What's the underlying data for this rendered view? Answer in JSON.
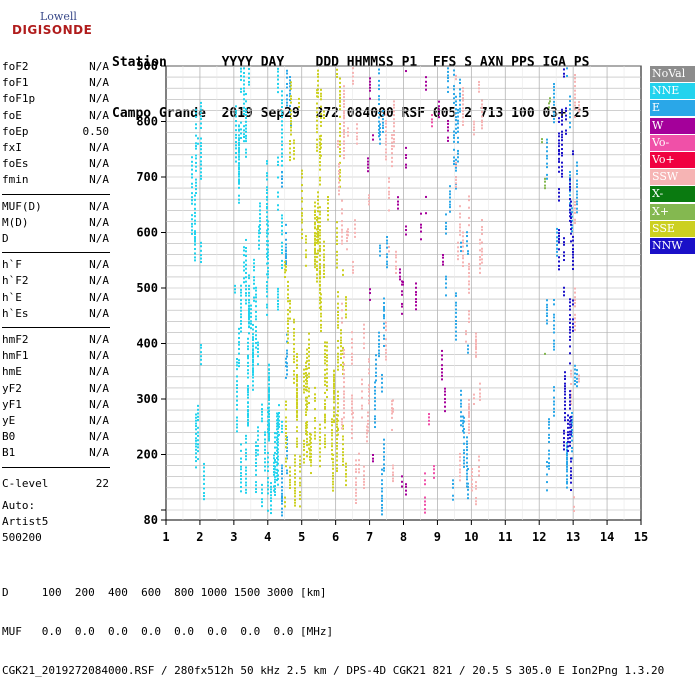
{
  "logo": {
    "line1": "Lowell",
    "line2": "DIGISONDE"
  },
  "header": {
    "line1": "Station       YYYY DAY    DDD HHMMSS P1  FFS S AXN PPS IGA PS",
    "line2": "Campo Grande  2019 Sep29  272 084000 RSF 005 2 713 100 03+ 25"
  },
  "params": {
    "group1": [
      {
        "name": "foF2",
        "value": "N/A"
      },
      {
        "name": "foF1",
        "value": "N/A"
      },
      {
        "name": "foF1p",
        "value": "N/A"
      },
      {
        "name": "foE",
        "value": "N/A"
      },
      {
        "name": "foEp",
        "value": "0.50"
      },
      {
        "name": "fxI",
        "value": "N/A"
      },
      {
        "name": "foEs",
        "value": "N/A"
      },
      {
        "name": "fmin",
        "value": "N/A"
      }
    ],
    "group2": [
      {
        "name": "MUF(D)",
        "value": "N/A"
      },
      {
        "name": "M(D)",
        "value": "N/A"
      },
      {
        "name": "D",
        "value": "N/A"
      }
    ],
    "group3": [
      {
        "name": "h`F",
        "value": "N/A"
      },
      {
        "name": "h`F2",
        "value": "N/A"
      },
      {
        "name": "h`E",
        "value": "N/A"
      },
      {
        "name": "h`Es",
        "value": "N/A"
      }
    ],
    "group4": [
      {
        "name": "hmF2",
        "value": "N/A"
      },
      {
        "name": "hmF1",
        "value": "N/A"
      },
      {
        "name": "hmE",
        "value": "N/A"
      },
      {
        "name": "yF2",
        "value": "N/A"
      },
      {
        "name": "yF1",
        "value": "N/A"
      },
      {
        "name": "yE",
        "value": "N/A"
      },
      {
        "name": "B0",
        "value": "N/A"
      },
      {
        "name": "B1",
        "value": "N/A"
      }
    ],
    "clevel": {
      "name": "C-level",
      "value": "22"
    },
    "auto_lines": [
      "Auto:",
      "Artist5",
      "500200"
    ]
  },
  "bottom": {
    "line1": "D     100  200  400  600  800 1000 1500 3000 [km]",
    "line2": "MUF   0.0  0.0  0.0  0.0  0.0  0.0  0.0  0.0 [MHz]",
    "line3": "CGK21_2019272084000.RSF / 280fx512h 50 kHz 2.5 km / DPS-4D CGK21 821 / 20.5 S 305.0 E Ion2Png 1.3.20"
  },
  "legend": [
    {
      "label": "NoVal",
      "color": "#8c8c8c"
    },
    {
      "label": "NNE",
      "color": "#22d3ee"
    },
    {
      "label": "E",
      "color": "#2aa7e8"
    },
    {
      "label": "W",
      "color": "#a4009a"
    },
    {
      "label": "Vo-",
      "color": "#f050a8"
    },
    {
      "label": "Vo+",
      "color": "#f00040"
    },
    {
      "label": "SSW",
      "color": "#f6b4b4"
    },
    {
      "label": "X-",
      "color": "#0a7a10"
    },
    {
      "label": "X+",
      "color": "#84b850"
    },
    {
      "label": "SSE",
      "color": "#ccd020"
    },
    {
      "label": "NNW",
      "color": "#1a10c8"
    }
  ],
  "chart_data": {
    "type": "scatter",
    "title": "",
    "xlabel": "",
    "ylabel": "",
    "xlim": [
      1,
      15
    ],
    "ylim": [
      80,
      900
    ],
    "x_ticks": [
      1,
      2,
      3,
      4,
      5,
      6,
      7,
      8,
      9,
      10,
      11,
      12,
      13,
      14,
      15
    ],
    "y_ticks": [
      80,
      100,
      200,
      300,
      400,
      500,
      600,
      700,
      800,
      900
    ],
    "y_tick_labels": [
      "80",
      "",
      "200",
      "300",
      "400",
      "500",
      "600",
      "700",
      "800",
      "900"
    ],
    "grid": true,
    "series": [
      {
        "name": "NNE",
        "color": "#22d3ee",
        "bands": [
          [
            1.75,
            2.1
          ],
          [
            2.95,
            4.4
          ]
        ],
        "density": 0.55
      },
      {
        "name": "E",
        "color": "#2aa7e8",
        "bands": [
          [
            4.3,
            4.7
          ],
          [
            7.1,
            7.5
          ],
          [
            9.2,
            9.9
          ],
          [
            12.2,
            12.5
          ],
          [
            12.8,
            13.1
          ]
        ],
        "density": 0.35
      },
      {
        "name": "SSE",
        "color": "#ccd020",
        "bands": [
          [
            4.45,
            6.3
          ]
        ],
        "density": 0.55
      },
      {
        "name": "SSW",
        "color": "#f6b4b4",
        "bands": [
          [
            6.0,
            7.0
          ],
          [
            7.4,
            7.8
          ],
          [
            9.5,
            10.4
          ],
          [
            12.9,
            13.3
          ]
        ],
        "density": 0.3
      },
      {
        "name": "W",
        "color": "#a4009a",
        "bands": [
          [
            6.9,
            7.1
          ],
          [
            7.8,
            8.1
          ],
          [
            8.3,
            8.7
          ],
          [
            9.0,
            9.3
          ]
        ],
        "density": 0.2
      },
      {
        "name": "NNW",
        "color": "#1a10c8",
        "bands": [
          [
            12.5,
            13.0
          ]
        ],
        "density": 0.45
      },
      {
        "name": "Vo-",
        "color": "#f050a8",
        "bands": [
          [
            8.6,
            8.9
          ]
        ],
        "density": 0.1
      },
      {
        "name": "X+",
        "color": "#84b850",
        "bands": [
          [
            12.0,
            12.3
          ]
        ],
        "density": 0.05
      }
    ]
  }
}
